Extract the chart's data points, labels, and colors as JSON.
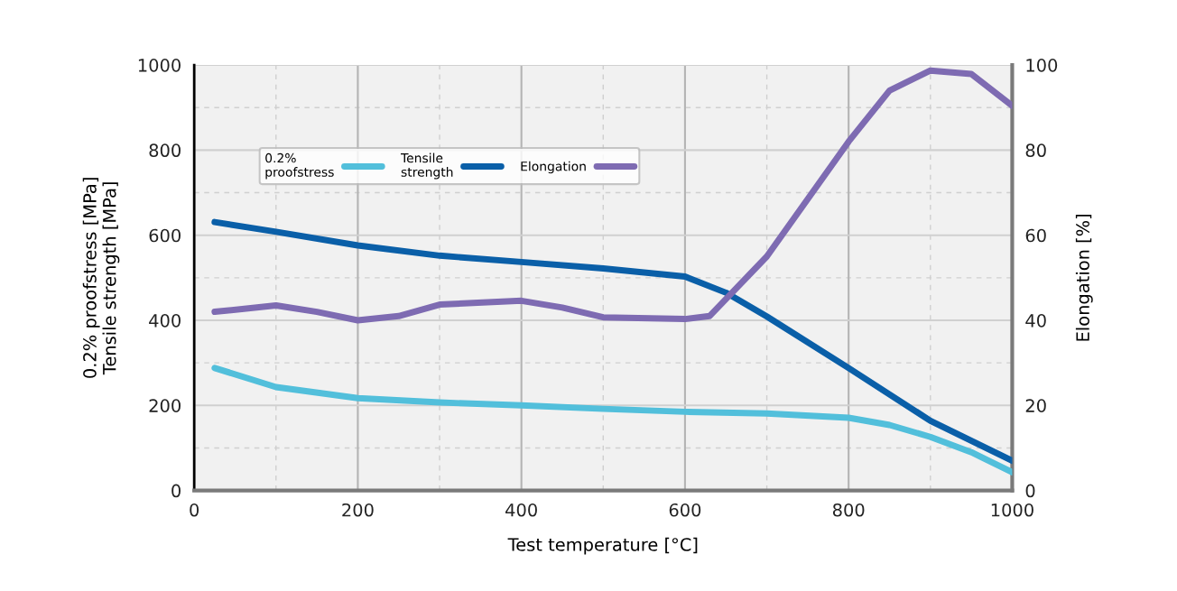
{
  "chart_data": {
    "type": "line",
    "xlabel": "Test temperature [°C]",
    "ylabel": "0.2% proofstress [MPa]\nTensile strength [MPa]",
    "y2label": "Elongation [%]",
    "xlim": [
      0,
      1000
    ],
    "xticks": [
      0,
      200,
      400,
      600,
      800,
      1000
    ],
    "ylim": [
      0,
      1000
    ],
    "yticks": [
      0,
      200,
      400,
      600,
      800,
      1000
    ],
    "y2lim": [
      0,
      100
    ],
    "y2ticks": [
      0,
      20,
      40,
      60,
      80,
      100
    ],
    "grid": true,
    "legend": "top left",
    "line_style": "solid",
    "marker": "none",
    "series": [
      {
        "name": "0.2%\nproofstress",
        "color": "#52bfdb",
        "x": [
          25,
          100,
          200,
          300,
          400,
          500,
          600,
          700,
          800,
          850,
          900,
          950,
          1000
        ],
        "values": [
          288,
          243,
          217,
          207,
          200,
          192,
          185,
          181,
          171,
          154,
          126,
          90,
          43
        ]
      },
      {
        "name": "Tensile\nstrength",
        "color": "#0a5fa8",
        "x": [
          25,
          100,
          200,
          300,
          400,
          500,
          600,
          650,
          700,
          800,
          900,
          1000
        ],
        "values": [
          631,
          608,
          576,
          552,
          537,
          522,
          503,
          465,
          409,
          288,
          164,
          70
        ]
      },
      {
        "name": "Elongation",
        "color": "#7e6bb2",
        "axis": "y2",
        "x": [
          25,
          100,
          150,
          200,
          250,
          300,
          400,
          450,
          500,
          600,
          630,
          700,
          800,
          850,
          900,
          950,
          1000
        ],
        "values": [
          42,
          43.5,
          42,
          40,
          41,
          43.7,
          44.6,
          43,
          40.7,
          40.3,
          41,
          55,
          82,
          94,
          98.7,
          97.9,
          90.4
        ]
      }
    ]
  }
}
